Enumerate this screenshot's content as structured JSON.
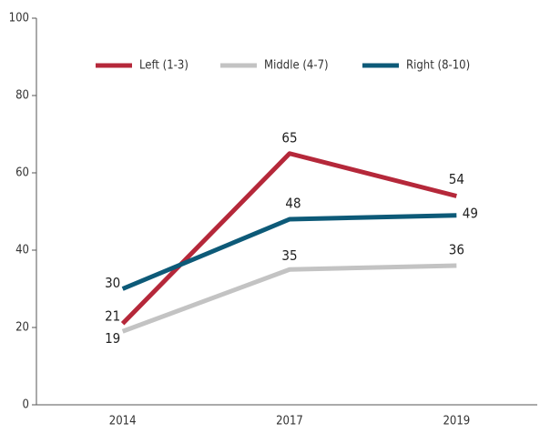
{
  "chart_data": {
    "type": "line",
    "categories": [
      "2014",
      "2017",
      "2019"
    ],
    "series": [
      {
        "name": "Left (1-3)",
        "color": "#b5283a",
        "values": [
          21,
          65,
          54
        ]
      },
      {
        "name": "Middle (4-7)",
        "color": "#c3c3c3",
        "values": [
          19,
          35,
          36
        ]
      },
      {
        "name": "Right (8-10)",
        "color": "#0d5a78",
        "values": [
          30,
          48,
          49
        ]
      }
    ],
    "ylim": [
      0,
      100
    ],
    "yticks": [
      0,
      20,
      40,
      60,
      80,
      100
    ],
    "grid": false,
    "legend": "top"
  }
}
